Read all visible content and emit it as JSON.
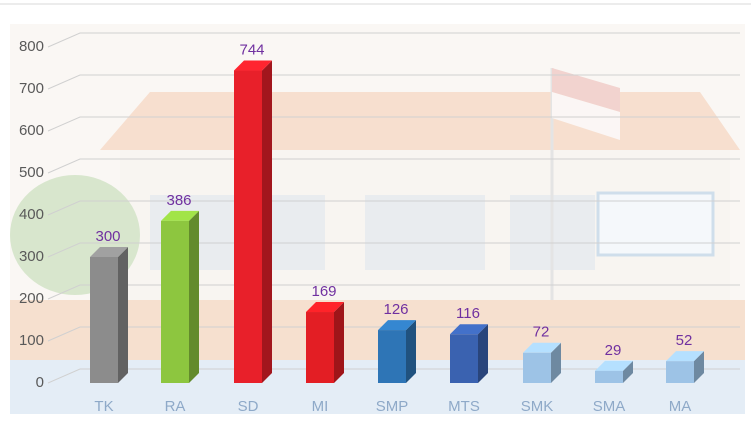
{
  "chart_data": {
    "type": "bar",
    "categories": [
      "TK",
      "RA",
      "SD",
      "MI",
      "SMP",
      "MTS",
      "SMK",
      "SMA",
      "MA"
    ],
    "values": [
      300,
      386,
      744,
      169,
      126,
      116,
      72,
      29,
      52
    ],
    "colors": [
      "#8c8c8c",
      "#8dc63f",
      "#e8202a",
      "#e31e24",
      "#2e75b6",
      "#3a62b0",
      "#9dc3e6",
      "#9dc3e6",
      "#9dc3e6"
    ],
    "ylim": [
      0,
      800
    ],
    "yticks": [
      0,
      100,
      200,
      300,
      400,
      500,
      600,
      700,
      800
    ],
    "grid": true
  }
}
